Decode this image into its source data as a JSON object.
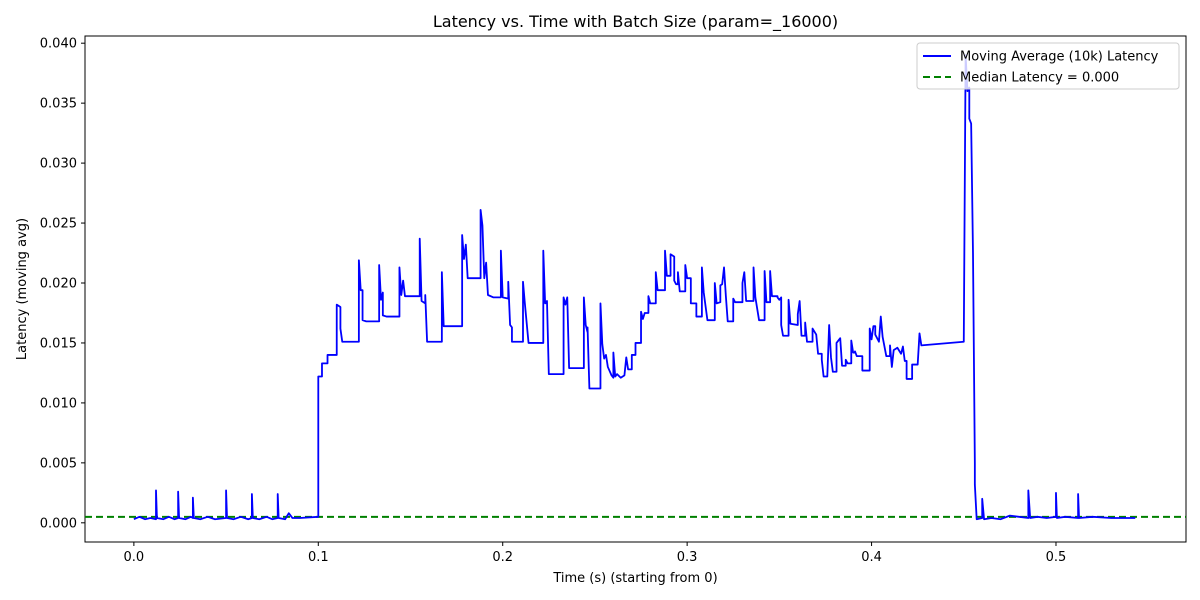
{
  "chart_data": {
    "type": "line",
    "title": "Latency vs. Time with Batch Size (param=_16000)",
    "xlabel": "Time (s) (starting from 0)",
    "ylabel": "Latency (moving avg)",
    "xlim": [
      -0.0265,
      0.5705
    ],
    "ylim": [
      -0.0016,
      0.0406
    ],
    "x_ticks": [
      0.0,
      0.1,
      0.2,
      0.3,
      0.4,
      0.5
    ],
    "x_tick_labels": [
      "0.0",
      "0.1",
      "0.2",
      "0.3",
      "0.4",
      "0.5"
    ],
    "y_ticks": [
      0.0,
      0.005,
      0.01,
      0.015,
      0.02,
      0.025,
      0.03,
      0.035,
      0.04
    ],
    "y_tick_labels": [
      "0.000",
      "0.005",
      "0.010",
      "0.015",
      "0.020",
      "0.025",
      "0.030",
      "0.035",
      "0.040"
    ],
    "grid": false,
    "legend_position": "top-right",
    "series": [
      {
        "name": "Moving Average (10k) Latency",
        "color": "#0000ff",
        "style": "solid",
        "points": [
          [
            0.0,
            0.0003
          ],
          [
            0.003,
            0.0005
          ],
          [
            0.006,
            0.0003
          ],
          [
            0.009,
            0.0004
          ],
          [
            0.012,
            0.0003
          ],
          [
            0.012,
            0.0027
          ],
          [
            0.0125,
            0.0004
          ],
          [
            0.016,
            0.0003
          ],
          [
            0.019,
            0.0005
          ],
          [
            0.022,
            0.0003
          ],
          [
            0.024,
            0.0004
          ],
          [
            0.024,
            0.0026
          ],
          [
            0.0245,
            0.0004
          ],
          [
            0.028,
            0.0003
          ],
          [
            0.031,
            0.0005
          ],
          [
            0.032,
            0.0004
          ],
          [
            0.032,
            0.0021
          ],
          [
            0.0325,
            0.0004
          ],
          [
            0.036,
            0.0003
          ],
          [
            0.04,
            0.0005
          ],
          [
            0.044,
            0.0003
          ],
          [
            0.05,
            0.0004
          ],
          [
            0.05,
            0.0027
          ],
          [
            0.0505,
            0.0004
          ],
          [
            0.054,
            0.0003
          ],
          [
            0.058,
            0.0005
          ],
          [
            0.062,
            0.0003
          ],
          [
            0.064,
            0.0004
          ],
          [
            0.064,
            0.0024
          ],
          [
            0.0645,
            0.0004
          ],
          [
            0.068,
            0.0003
          ],
          [
            0.072,
            0.0005
          ],
          [
            0.075,
            0.0003
          ],
          [
            0.078,
            0.0004
          ],
          [
            0.078,
            0.0024
          ],
          [
            0.0785,
            0.0004
          ],
          [
            0.082,
            0.0003
          ],
          [
            0.084,
            0.0008
          ],
          [
            0.086,
            0.0004
          ],
          [
            0.09,
            0.0004
          ],
          [
            0.1,
            0.0005
          ],
          [
            0.1,
            0.0122
          ],
          [
            0.102,
            0.0122
          ],
          [
            0.102,
            0.0133
          ],
          [
            0.105,
            0.0133
          ],
          [
            0.105,
            0.014
          ],
          [
            0.11,
            0.014
          ],
          [
            0.11,
            0.0182
          ],
          [
            0.112,
            0.018
          ],
          [
            0.112,
            0.0162
          ],
          [
            0.113,
            0.0151
          ],
          [
            0.122,
            0.0151
          ],
          [
            0.122,
            0.0219
          ],
          [
            0.123,
            0.0194
          ],
          [
            0.124,
            0.0194
          ],
          [
            0.124,
            0.0169
          ],
          [
            0.126,
            0.0168
          ],
          [
            0.133,
            0.0168
          ],
          [
            0.133,
            0.0215
          ],
          [
            0.134,
            0.0186
          ],
          [
            0.135,
            0.0192
          ],
          [
            0.135,
            0.0173
          ],
          [
            0.137,
            0.0172
          ],
          [
            0.144,
            0.0172
          ],
          [
            0.144,
            0.0213
          ],
          [
            0.145,
            0.019
          ],
          [
            0.146,
            0.0202
          ],
          [
            0.147,
            0.0189
          ],
          [
            0.155,
            0.0189
          ],
          [
            0.155,
            0.0237
          ],
          [
            0.156,
            0.0185
          ],
          [
            0.158,
            0.0183
          ],
          [
            0.158,
            0.019
          ],
          [
            0.159,
            0.0151
          ],
          [
            0.167,
            0.0151
          ],
          [
            0.167,
            0.0209
          ],
          [
            0.168,
            0.0164
          ],
          [
            0.178,
            0.0164
          ],
          [
            0.178,
            0.024
          ],
          [
            0.179,
            0.022
          ],
          [
            0.18,
            0.0232
          ],
          [
            0.181,
            0.0204
          ],
          [
            0.188,
            0.0204
          ],
          [
            0.188,
            0.0261
          ],
          [
            0.189,
            0.0248
          ],
          [
            0.19,
            0.0204
          ],
          [
            0.191,
            0.0217
          ],
          [
            0.192,
            0.019
          ],
          [
            0.195,
            0.0188
          ],
          [
            0.199,
            0.0188
          ],
          [
            0.199,
            0.0227
          ],
          [
            0.2,
            0.0188
          ],
          [
            0.203,
            0.0187
          ],
          [
            0.203,
            0.0201
          ],
          [
            0.204,
            0.0165
          ],
          [
            0.205,
            0.0163
          ],
          [
            0.205,
            0.0151
          ],
          [
            0.211,
            0.0151
          ],
          [
            0.211,
            0.0201
          ],
          [
            0.212,
            0.0183
          ],
          [
            0.214,
            0.015
          ],
          [
            0.222,
            0.015
          ],
          [
            0.222,
            0.0227
          ],
          [
            0.223,
            0.0183
          ],
          [
            0.224,
            0.0185
          ],
          [
            0.225,
            0.0124
          ],
          [
            0.233,
            0.0124
          ],
          [
            0.233,
            0.0188
          ],
          [
            0.234,
            0.0182
          ],
          [
            0.235,
            0.0188
          ],
          [
            0.236,
            0.0129
          ],
          [
            0.244,
            0.0129
          ],
          [
            0.244,
            0.0188
          ],
          [
            0.245,
            0.0165
          ],
          [
            0.246,
            0.0159
          ],
          [
            0.246,
            0.0163
          ],
          [
            0.247,
            0.0112
          ],
          [
            0.253,
            0.0112
          ],
          [
            0.253,
            0.0183
          ],
          [
            0.254,
            0.0149
          ],
          [
            0.255,
            0.0137
          ],
          [
            0.256,
            0.014
          ],
          [
            0.257,
            0.013
          ],
          [
            0.259,
            0.0123
          ],
          [
            0.26,
            0.0121
          ],
          [
            0.26,
            0.0142
          ],
          [
            0.261,
            0.0122
          ],
          [
            0.262,
            0.0124
          ],
          [
            0.264,
            0.0121
          ],
          [
            0.266,
            0.0123
          ],
          [
            0.267,
            0.0138
          ],
          [
            0.268,
            0.0128
          ],
          [
            0.27,
            0.0128
          ],
          [
            0.27,
            0.014
          ],
          [
            0.272,
            0.014
          ],
          [
            0.272,
            0.015
          ],
          [
            0.275,
            0.015
          ],
          [
            0.275,
            0.0176
          ],
          [
            0.276,
            0.017
          ],
          [
            0.277,
            0.0175
          ],
          [
            0.279,
            0.0175
          ],
          [
            0.279,
            0.0189
          ],
          [
            0.28,
            0.0183
          ],
          [
            0.283,
            0.0183
          ],
          [
            0.283,
            0.0209
          ],
          [
            0.284,
            0.0194
          ],
          [
            0.288,
            0.0194
          ],
          [
            0.288,
            0.0227
          ],
          [
            0.289,
            0.0206
          ],
          [
            0.291,
            0.0206
          ],
          [
            0.291,
            0.0224
          ],
          [
            0.293,
            0.0222
          ],
          [
            0.293,
            0.0202
          ],
          [
            0.294,
            0.0199
          ],
          [
            0.295,
            0.0199
          ],
          [
            0.295,
            0.0209
          ],
          [
            0.296,
            0.0193
          ],
          [
            0.299,
            0.0193
          ],
          [
            0.299,
            0.0215
          ],
          [
            0.3,
            0.0204
          ],
          [
            0.302,
            0.0204
          ],
          [
            0.302,
            0.0183
          ],
          [
            0.305,
            0.0183
          ],
          [
            0.305,
            0.0172
          ],
          [
            0.308,
            0.0172
          ],
          [
            0.308,
            0.0213
          ],
          [
            0.309,
            0.0192
          ],
          [
            0.311,
            0.0169
          ],
          [
            0.315,
            0.0169
          ],
          [
            0.315,
            0.02
          ],
          [
            0.316,
            0.0183
          ],
          [
            0.318,
            0.0184
          ],
          [
            0.318,
            0.0198
          ],
          [
            0.319,
            0.0199
          ],
          [
            0.32,
            0.0213
          ],
          [
            0.321,
            0.0189
          ],
          [
            0.322,
            0.0168
          ],
          [
            0.325,
            0.0168
          ],
          [
            0.325,
            0.0187
          ],
          [
            0.326,
            0.0184
          ],
          [
            0.33,
            0.0184
          ],
          [
            0.33,
            0.02
          ],
          [
            0.331,
            0.0209
          ],
          [
            0.332,
            0.0185
          ],
          [
            0.336,
            0.0185
          ],
          [
            0.336,
            0.0213
          ],
          [
            0.337,
            0.0188
          ],
          [
            0.339,
            0.0169
          ],
          [
            0.342,
            0.0169
          ],
          [
            0.342,
            0.021
          ],
          [
            0.343,
            0.0184
          ],
          [
            0.345,
            0.0184
          ],
          [
            0.345,
            0.021
          ],
          [
            0.346,
            0.0189
          ],
          [
            0.349,
            0.0189
          ],
          [
            0.349,
            0.0188
          ],
          [
            0.35,
            0.0186
          ],
          [
            0.351,
            0.0188
          ],
          [
            0.351,
            0.0165
          ],
          [
            0.352,
            0.0156
          ],
          [
            0.355,
            0.0156
          ],
          [
            0.355,
            0.0186
          ],
          [
            0.356,
            0.0166
          ],
          [
            0.36,
            0.0165
          ],
          [
            0.36,
            0.0174
          ],
          [
            0.361,
            0.0185
          ],
          [
            0.362,
            0.0156
          ],
          [
            0.364,
            0.0156
          ],
          [
            0.364,
            0.0167
          ],
          [
            0.365,
            0.0151
          ],
          [
            0.368,
            0.0151
          ],
          [
            0.368,
            0.0162
          ],
          [
            0.37,
            0.0157
          ],
          [
            0.371,
            0.0141
          ],
          [
            0.373,
            0.0141
          ],
          [
            0.373,
            0.0136
          ],
          [
            0.374,
            0.0122
          ],
          [
            0.376,
            0.0122
          ],
          [
            0.377,
            0.0165
          ],
          [
            0.378,
            0.0138
          ],
          [
            0.379,
            0.0126
          ],
          [
            0.381,
            0.0126
          ],
          [
            0.381,
            0.015
          ],
          [
            0.383,
            0.0154
          ],
          [
            0.384,
            0.0131
          ],
          [
            0.386,
            0.0131
          ],
          [
            0.386,
            0.0136
          ],
          [
            0.387,
            0.0133
          ],
          [
            0.389,
            0.0133
          ],
          [
            0.389,
            0.0152
          ],
          [
            0.39,
            0.0142
          ],
          [
            0.391,
            0.0142
          ],
          [
            0.391,
            0.0143
          ],
          [
            0.392,
            0.0139
          ],
          [
            0.395,
            0.0139
          ],
          [
            0.395,
            0.0127
          ],
          [
            0.399,
            0.0127
          ],
          [
            0.399,
            0.0162
          ],
          [
            0.4,
            0.0153
          ],
          [
            0.401,
            0.0164
          ],
          [
            0.402,
            0.0164
          ],
          [
            0.402,
            0.0157
          ],
          [
            0.404,
            0.0151
          ],
          [
            0.405,
            0.0172
          ],
          [
            0.406,
            0.0155
          ],
          [
            0.408,
            0.0139
          ],
          [
            0.41,
            0.0139
          ],
          [
            0.41,
            0.0148
          ],
          [
            0.411,
            0.013
          ],
          [
            0.412,
            0.0144
          ],
          [
            0.414,
            0.0146
          ],
          [
            0.416,
            0.0141
          ],
          [
            0.417,
            0.0147
          ],
          [
            0.418,
            0.0135
          ],
          [
            0.419,
            0.0135
          ],
          [
            0.419,
            0.012
          ],
          [
            0.422,
            0.012
          ],
          [
            0.422,
            0.0132
          ],
          [
            0.425,
            0.0132
          ],
          [
            0.426,
            0.0158
          ],
          [
            0.427,
            0.0148
          ],
          [
            0.45,
            0.0151
          ],
          [
            0.451,
            0.039
          ],
          [
            0.452,
            0.036
          ],
          [
            0.453,
            0.0363
          ],
          [
            0.453,
            0.0337
          ],
          [
            0.454,
            0.0333
          ],
          [
            0.455,
            0.0225
          ],
          [
            0.456,
            0.005
          ],
          [
            0.456,
            0.0032
          ],
          [
            0.457,
            0.0003
          ],
          [
            0.46,
            0.0004
          ],
          [
            0.46,
            0.002
          ],
          [
            0.461,
            0.0003
          ],
          [
            0.465,
            0.0004
          ],
          [
            0.47,
            0.0003
          ],
          [
            0.475,
            0.0006
          ],
          [
            0.48,
            0.0005
          ],
          [
            0.485,
            0.0004
          ],
          [
            0.485,
            0.0027
          ],
          [
            0.486,
            0.0004
          ],
          [
            0.49,
            0.0005
          ],
          [
            0.495,
            0.0004
          ],
          [
            0.5,
            0.0005
          ],
          [
            0.5,
            0.0025
          ],
          [
            0.5005,
            0.0004
          ],
          [
            0.505,
            0.0005
          ],
          [
            0.512,
            0.0004
          ],
          [
            0.512,
            0.0024
          ],
          [
            0.5125,
            0.0004
          ],
          [
            0.52,
            0.0005
          ],
          [
            0.53,
            0.0004
          ],
          [
            0.54,
            0.0004
          ],
          [
            0.543,
            0.0004
          ]
        ]
      },
      {
        "name": "Median Latency = 0.000",
        "color": "#008000",
        "style": "dashed",
        "y": 0.0005
      }
    ]
  }
}
